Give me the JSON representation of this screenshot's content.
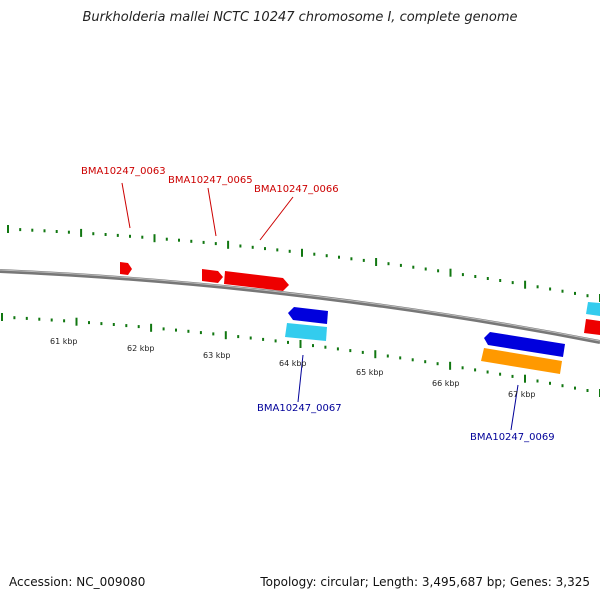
{
  "title": "Burkholderia mallei NCTC 10247 chromosome I, complete genome",
  "footer": {
    "accession": "Accession: NC_009080",
    "summary": "Topology: circular; Length: 3,495,687 bp; Genes: 3,325"
  },
  "kbp_labels": [
    "61 kbp",
    "62 kbp",
    "63 kbp",
    "64 kbp",
    "65 kbp",
    "66 kbp",
    "67 kbp"
  ],
  "genes": [
    {
      "name": "BMA10247_0063",
      "strand": "forward",
      "color": "#ee0000"
    },
    {
      "name": "BMA10247_0065",
      "strand": "forward",
      "color": "#ee0000"
    },
    {
      "name": "BMA10247_0066",
      "strand": "forward",
      "color": "#ee0000"
    },
    {
      "name": "BMA10247_0067",
      "strand": "reverse",
      "color": "#0000dd"
    },
    {
      "name": "BMA10247_0069",
      "strand": "reverse",
      "color": "#0000dd"
    }
  ],
  "colors": {
    "forward_cds": "#ee0000",
    "reverse_cds": "#0000dd",
    "forward_gene": "#33ccee",
    "reverse_gene": "#ff9900",
    "backbone": "#888888",
    "ticks": "#117711"
  }
}
